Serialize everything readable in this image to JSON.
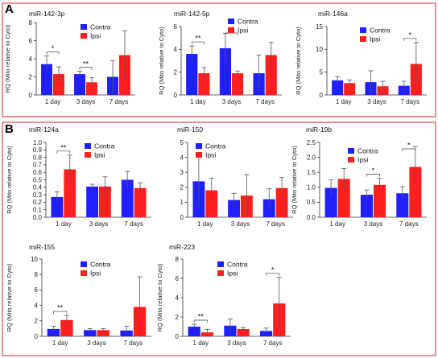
{
  "panels": [
    {
      "letter": "A"
    },
    {
      "letter": "B"
    }
  ],
  "legend": {
    "contra": "Contra",
    "ipsi": "Ipsi"
  },
  "colors": {
    "contra": "#1f1fff",
    "ipsi": "#ff1f1f",
    "frame": "#e04a4a",
    "axis": "#333333"
  },
  "ylabel": "RQ (Mito relative to Cyto)",
  "categories": [
    "1 day",
    "3 days",
    "7 days"
  ],
  "chart_data": [
    {
      "type": "bar",
      "title": "miR-142-3p",
      "categories": [
        "1 day",
        "3 days",
        "7 days"
      ],
      "ylabel": "RQ (Mito relative to Cyto)",
      "ylim": [
        0,
        8
      ],
      "yticks": [
        0,
        2,
        4,
        6,
        8
      ],
      "series": [
        {
          "name": "Contra",
          "values": [
            3.4,
            2.3,
            2.0
          ],
          "errors": [
            0.9,
            0.3,
            1.8
          ]
        },
        {
          "name": "Ipsi",
          "values": [
            2.3,
            1.4,
            4.4
          ],
          "errors": [
            0.8,
            0.5,
            2.7
          ]
        }
      ],
      "annotations": [
        {
          "category": "1 day",
          "text": "*"
        },
        {
          "category": "3 days",
          "text": "**"
        }
      ]
    },
    {
      "type": "bar",
      "title": "miR-142-5p",
      "categories": [
        "1 day",
        "3 days",
        "7 days"
      ],
      "ylabel": "RQ (Mito relative to Cyto)",
      "ylim": [
        0,
        6
      ],
      "yticks": [
        0,
        2,
        4,
        6
      ],
      "series": [
        {
          "name": "Contra",
          "values": [
            3.6,
            4.1,
            1.9
          ],
          "errors": [
            0.7,
            1.3,
            1.6
          ]
        },
        {
          "name": "Ipsi",
          "values": [
            1.9,
            1.9,
            3.5
          ],
          "errors": [
            0.5,
            0.2,
            1.1
          ]
        }
      ],
      "annotations": [
        {
          "category": "1 day",
          "text": "**"
        },
        {
          "category": "3 days",
          "text": "**"
        }
      ]
    },
    {
      "type": "bar",
      "title": "miR-146a",
      "categories": [
        "1 day",
        "3 days",
        "7 days"
      ],
      "ylabel": "RQ (Mito relative to Cyto)",
      "ylim": [
        0,
        15
      ],
      "yticks": [
        0,
        5,
        10,
        15
      ],
      "series": [
        {
          "name": "Contra",
          "values": [
            3.2,
            2.8,
            2.0
          ],
          "errors": [
            0.8,
            2.5,
            1.0
          ]
        },
        {
          "name": "Ipsi",
          "values": [
            2.6,
            1.9,
            6.8
          ],
          "errors": [
            0.7,
            1.1,
            4.7
          ]
        }
      ],
      "annotations": [
        {
          "category": "7 days",
          "text": "*"
        }
      ]
    },
    {
      "type": "bar",
      "title": "miR-124a",
      "categories": [
        "1 day",
        "3 days",
        "7 days"
      ],
      "ylabel": "RQ (Mito relative to Cyto)",
      "ylim": [
        0,
        1.0
      ],
      "yticks": [
        0,
        0.1,
        0.2,
        0.3,
        0.4,
        0.5,
        0.6,
        0.7,
        0.8,
        0.9,
        1.0
      ],
      "series": [
        {
          "name": "Contra",
          "values": [
            0.27,
            0.41,
            0.5
          ],
          "errors": [
            0.07,
            0.03,
            0.11
          ]
        },
        {
          "name": "Ipsi",
          "values": [
            0.64,
            0.41,
            0.39
          ],
          "errors": [
            0.19,
            0.13,
            0.07
          ]
        }
      ],
      "annotations": [
        {
          "category": "1 day",
          "text": "**"
        }
      ]
    },
    {
      "type": "bar",
      "title": "miR-150",
      "categories": [
        "1 day",
        "3 days",
        "7 days"
      ],
      "ylabel": "",
      "ylim": [
        0,
        5
      ],
      "yticks": [
        0,
        1,
        2,
        3,
        4,
        5
      ],
      "series": [
        {
          "name": "Contra",
          "values": [
            2.4,
            1.15,
            1.2
          ],
          "errors": [
            1.7,
            0.45,
            0.7
          ]
        },
        {
          "name": "Ipsi",
          "values": [
            1.8,
            1.45,
            1.95
          ],
          "errors": [
            0.8,
            1.4,
            0.7
          ]
        }
      ],
      "annotations": []
    },
    {
      "type": "bar",
      "title": "miR-19b",
      "categories": [
        "1 day",
        "3 days",
        "7 days"
      ],
      "ylabel": "RQ (Mito relative to Cyto)",
      "ylim": [
        0,
        2.5
      ],
      "yticks": [
        0,
        0.5,
        1.0,
        1.5,
        2.0,
        2.5
      ],
      "series": [
        {
          "name": "Contra",
          "values": [
            0.98,
            0.75,
            0.8
          ],
          "errors": [
            0.27,
            0.16,
            0.22
          ]
        },
        {
          "name": "Ipsi",
          "values": [
            1.28,
            1.08,
            1.68
          ],
          "errors": [
            0.35,
            0.22,
            0.68
          ]
        }
      ],
      "annotations": [
        {
          "category": "3 days",
          "text": "*"
        },
        {
          "category": "7 days",
          "text": "*"
        }
      ]
    },
    {
      "type": "bar",
      "title": "miR-155",
      "categories": [
        "1 day",
        "3 days",
        "7 days"
      ],
      "ylabel": "RQ (Mito relative to Cyto)",
      "ylim": [
        0,
        10
      ],
      "yticks": [
        0,
        2,
        4,
        6,
        8,
        10
      ],
      "series": [
        {
          "name": "Contra",
          "values": [
            0.95,
            0.8,
            0.75
          ],
          "errors": [
            0.35,
            0.2,
            0.55
          ]
        },
        {
          "name": "Ipsi",
          "values": [
            2.1,
            0.8,
            3.8
          ],
          "errors": [
            0.6,
            0.2,
            3.9
          ]
        }
      ],
      "annotations": [
        {
          "category": "1 day",
          "text": "**"
        }
      ]
    },
    {
      "type": "bar",
      "title": "miR-223",
      "categories": [
        "1 day",
        "3 days",
        "7 days"
      ],
      "ylabel": "RQ (Mito relative to Cyto)",
      "ylim": [
        0,
        8
      ],
      "yticks": [
        0,
        2,
        4,
        6,
        8
      ],
      "series": [
        {
          "name": "Contra",
          "values": [
            1.0,
            1.1,
            0.55
          ],
          "errors": [
            0.25,
            0.7,
            0.3
          ]
        },
        {
          "name": "Ipsi",
          "values": [
            0.4,
            0.75,
            3.4
          ],
          "errors": [
            0.3,
            0.15,
            2.7
          ]
        }
      ],
      "annotations": [
        {
          "category": "1 day",
          "text": "**"
        },
        {
          "category": "7 days",
          "text": "*"
        }
      ]
    }
  ]
}
